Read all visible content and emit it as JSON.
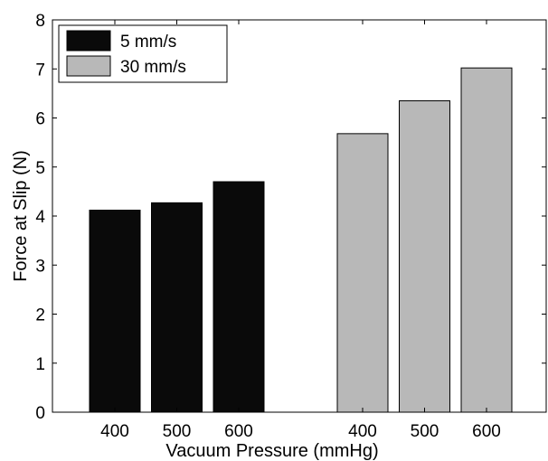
{
  "chart_data": {
    "type": "bar",
    "xlabel": "Vacuum Pressure (mmHg)",
    "ylabel": "Force at Slip (N)",
    "ylim": [
      0,
      8
    ],
    "yticks": [
      0,
      1,
      2,
      3,
      4,
      5,
      6,
      7,
      8
    ],
    "grid": false,
    "legend_position": "top-left",
    "series": [
      {
        "name": "5 mm/s",
        "color": "#0a0a0a",
        "categories": [
          "400",
          "500",
          "600"
        ],
        "values": [
          4.12,
          4.27,
          4.7
        ]
      },
      {
        "name": "30 mm/s",
        "color": "#b8b8b8",
        "categories": [
          "400",
          "500",
          "600"
        ],
        "values": [
          5.68,
          6.35,
          7.02
        ]
      }
    ]
  }
}
